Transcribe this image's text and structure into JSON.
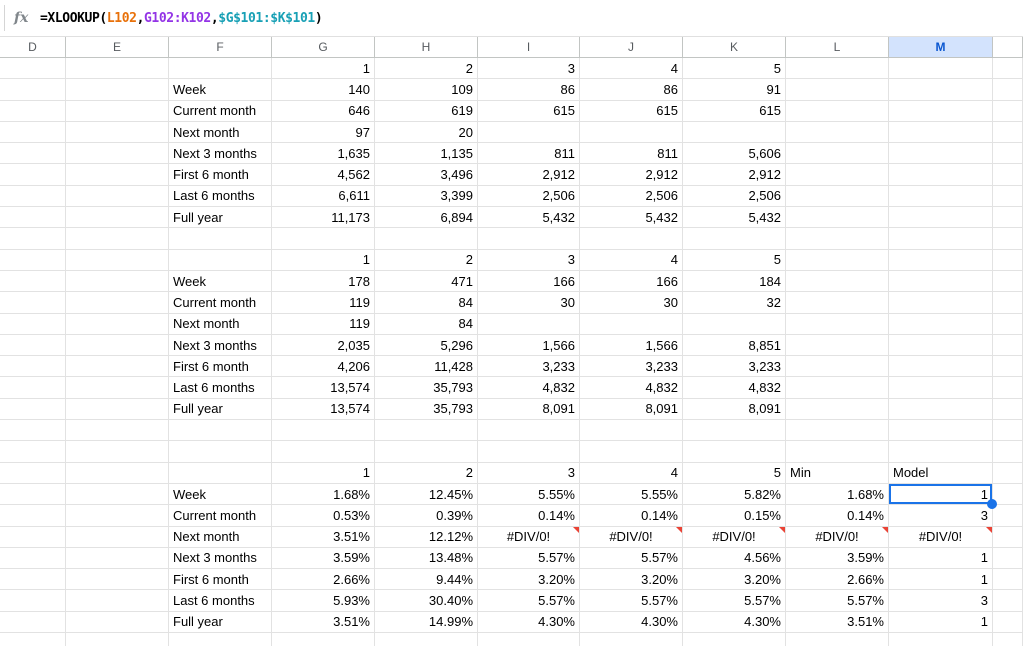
{
  "formula_bar": {
    "fx_label": "fx",
    "formula_full": "=XLOOKUP(L102,G102:K102,$G$101:$K$101)",
    "formula_parts": [
      {
        "text": "=XLOOKUP(",
        "color": "#000000"
      },
      {
        "text": "L102",
        "color": "#e8710a"
      },
      {
        "text": ",",
        "color": "#000000"
      },
      {
        "text": "G102:K102",
        "color": "#9334e6"
      },
      {
        "text": ",",
        "color": "#000000"
      },
      {
        "text": "$G$101:$K$101",
        "color": "#18a0b5"
      },
      {
        "text": ")",
        "color": "#000000"
      }
    ]
  },
  "columns": [
    {
      "id": "D",
      "label": "D",
      "width": 66,
      "selected": false
    },
    {
      "id": "E",
      "label": "E",
      "width": 103,
      "selected": false
    },
    {
      "id": "F",
      "label": "F",
      "width": 103,
      "selected": false
    },
    {
      "id": "G",
      "label": "G",
      "width": 103,
      "selected": false
    },
    {
      "id": "H",
      "label": "H",
      "width": 103,
      "selected": false
    },
    {
      "id": "I",
      "label": "I",
      "width": 102,
      "selected": false
    },
    {
      "id": "J",
      "label": "J",
      "width": 103,
      "selected": false
    },
    {
      "id": "K",
      "label": "K",
      "width": 103,
      "selected": false
    },
    {
      "id": "L",
      "label": "L",
      "width": 103,
      "selected": false
    },
    {
      "id": "M",
      "label": "M",
      "width": 104,
      "selected": true
    },
    {
      "id": "N",
      "label": "",
      "width": 30,
      "selected": false
    }
  ],
  "grid": {
    "row_count": 28,
    "error_value": "#DIV/0!",
    "rows": {
      "1": {
        "G": "1",
        "H": "2",
        "I": "3",
        "J": "4",
        "K": "5"
      },
      "2": {
        "F": "Week",
        "G": "140",
        "H": "109",
        "I": "86",
        "J": "86",
        "K": "91"
      },
      "3": {
        "F": "Current month",
        "G": "646",
        "H": "619",
        "I": "615",
        "J": "615",
        "K": "615"
      },
      "4": {
        "F": "Next month",
        "G": "97",
        "H": "20"
      },
      "5": {
        "F": "Next 3 months",
        "G": "1,635",
        "H": "1,135",
        "I": "811",
        "J": "811",
        "K": "5,606"
      },
      "6": {
        "F": "First 6 month",
        "G": "4,562",
        "H": "3,496",
        "I": "2,912",
        "J": "2,912",
        "K": "2,912"
      },
      "7": {
        "F": "Last 6 months",
        "G": "6,611",
        "H": "3,399",
        "I": "2,506",
        "J": "2,506",
        "K": "2,506"
      },
      "8": {
        "F": "Full year",
        "G": "11,173",
        "H": "6,894",
        "I": "5,432",
        "J": "5,432",
        "K": "5,432"
      },
      "10": {
        "G": "1",
        "H": "2",
        "I": "3",
        "J": "4",
        "K": "5"
      },
      "11": {
        "F": "Week",
        "G": "178",
        "H": "471",
        "I": "166",
        "J": "166",
        "K": "184"
      },
      "12": {
        "F": "Current month",
        "G": "119",
        "H": "84",
        "I": "30",
        "J": "30",
        "K": "32"
      },
      "13": {
        "F": "Next month",
        "G": "119",
        "H": "84"
      },
      "14": {
        "F": "Next 3 months",
        "G": "2,035",
        "H": "5,296",
        "I": "1,566",
        "J": "1,566",
        "K": "8,851"
      },
      "15": {
        "F": "First 6 month",
        "G": "4,206",
        "H": "11,428",
        "I": "3,233",
        "J": "3,233",
        "K": "3,233"
      },
      "16": {
        "F": "Last 6 months",
        "G": "13,574",
        "H": "35,793",
        "I": "4,832",
        "J": "4,832",
        "K": "4,832"
      },
      "17": {
        "F": "Full year",
        "G": "13,574",
        "H": "35,793",
        "I": "8,091",
        "J": "8,091",
        "K": "8,091"
      },
      "20": {
        "G": "1",
        "H": "2",
        "I": "3",
        "J": "4",
        "K": "5",
        "L": "Min",
        "M": "Model"
      },
      "21": {
        "F": "Week",
        "G": "1.68%",
        "H": "12.45%",
        "I": "5.55%",
        "J": "5.55%",
        "K": "5.82%",
        "L": "1.68%",
        "M": "1"
      },
      "22": {
        "F": "Current month",
        "G": "0.53%",
        "H": "0.39%",
        "I": "0.14%",
        "J": "0.14%",
        "K": "0.15%",
        "L": "0.14%",
        "M": "3"
      },
      "23": {
        "F": "Next month",
        "G": "3.51%",
        "H": "12.12%",
        "I": "#DIV/0!",
        "J": "#DIV/0!",
        "K": "#DIV/0!",
        "L": "#DIV/0!",
        "M": "#DIV/0!"
      },
      "24": {
        "F": "Next 3 months",
        "G": "3.59%",
        "H": "13.48%",
        "I": "5.57%",
        "J": "5.57%",
        "K": "4.56%",
        "L": "3.59%",
        "M": "1"
      },
      "25": {
        "F": "First 6 month",
        "G": "2.66%",
        "H": "9.44%",
        "I": "3.20%",
        "J": "3.20%",
        "K": "3.20%",
        "L": "2.66%",
        "M": "1"
      },
      "26": {
        "F": "Last 6 months",
        "G": "5.93%",
        "H": "30.40%",
        "I": "5.57%",
        "J": "5.57%",
        "K": "5.57%",
        "L": "5.57%",
        "M": "3"
      },
      "27": {
        "F": "Full year",
        "G": "3.51%",
        "H": "14.99%",
        "I": "4.30%",
        "J": "4.30%",
        "K": "4.30%",
        "L": "3.51%",
        "M": "1"
      }
    },
    "left_aligned_cells": [
      [
        20,
        "L"
      ],
      [
        20,
        "M"
      ]
    ]
  },
  "selection": {
    "row": 21,
    "col": "M",
    "value": "1"
  },
  "colors": {
    "selection_blue": "#1a73e8",
    "selected_header_bg": "#d3e3fd",
    "selected_header_text": "#0b57d0",
    "error_red": "#ea4335",
    "grid_line": "#e2e2e2",
    "header_line": "#c2c5c3",
    "header_text": "#575b5f"
  }
}
